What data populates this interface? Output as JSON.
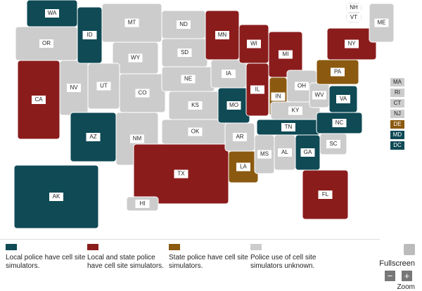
{
  "map": {
    "states": [
      {
        "label": "WA",
        "category": 0
      },
      {
        "label": "OR",
        "category": 3
      },
      {
        "label": "CA",
        "category": 1
      },
      {
        "label": "NV",
        "category": 3
      },
      {
        "label": "ID",
        "category": 0
      },
      {
        "label": "MT",
        "category": 3
      },
      {
        "label": "WY",
        "category": 3
      },
      {
        "label": "UT",
        "category": 3
      },
      {
        "label": "CO",
        "category": 3
      },
      {
        "label": "AZ",
        "category": 0
      },
      {
        "label": "NM",
        "category": 3
      },
      {
        "label": "ND",
        "category": 3
      },
      {
        "label": "SD",
        "category": 3
      },
      {
        "label": "NE",
        "category": 3
      },
      {
        "label": "KS",
        "category": 3
      },
      {
        "label": "OK",
        "category": 3
      },
      {
        "label": "TX",
        "category": 1
      },
      {
        "label": "MN",
        "category": 1
      },
      {
        "label": "IA",
        "category": 3
      },
      {
        "label": "MO",
        "category": 0
      },
      {
        "label": "AR",
        "category": 3
      },
      {
        "label": "LA",
        "category": 2
      },
      {
        "label": "WI",
        "category": 1
      },
      {
        "label": "IL",
        "category": 1
      },
      {
        "label": "MI",
        "category": 1
      },
      {
        "label": "IN",
        "category": 2
      },
      {
        "label": "OH",
        "category": 3
      },
      {
        "label": "KY",
        "category": 3
      },
      {
        "label": "TN",
        "category": 0
      },
      {
        "label": "MS",
        "category": 3
      },
      {
        "label": "AL",
        "category": 3
      },
      {
        "label": "GA",
        "category": 0
      },
      {
        "label": "FL",
        "category": 1
      },
      {
        "label": "SC",
        "category": 3
      },
      {
        "label": "NC",
        "category": 0
      },
      {
        "label": "WV",
        "category": 3
      },
      {
        "label": "VA",
        "category": 0
      },
      {
        "label": "PA",
        "category": 2
      },
      {
        "label": "NY",
        "category": 1
      },
      {
        "label": "ME",
        "category": 3
      },
      {
        "label": "NH",
        "category": 3
      },
      {
        "label": "VT",
        "category": 3
      },
      {
        "label": "AK",
        "category": 0
      },
      {
        "label": "HI",
        "category": 3
      },
      {
        "label": "MA",
        "category": 3
      },
      {
        "label": "RI",
        "category": 3
      },
      {
        "label": "CT",
        "category": 3
      },
      {
        "label": "NJ",
        "category": 3
      },
      {
        "label": "DE",
        "category": 2
      },
      {
        "label": "MD",
        "category": 0
      },
      {
        "label": "DC",
        "category": 0
      }
    ],
    "categories": [
      {
        "label": "Local police have cell site simulators.",
        "color": "#0f4a55"
      },
      {
        "label": "Local and state police have cell site simulators.",
        "color": "#8b1c1c"
      },
      {
        "label": "State police have cell site simulators.",
        "color": "#8b5a10"
      },
      {
        "label": "Police use of cell site simulators unknown.",
        "color": "#cccccc"
      }
    ]
  },
  "controls": {
    "fullscreen": "Fullscreen",
    "zoom": "Zoom",
    "zoom_out": "−",
    "zoom_in": "+"
  }
}
